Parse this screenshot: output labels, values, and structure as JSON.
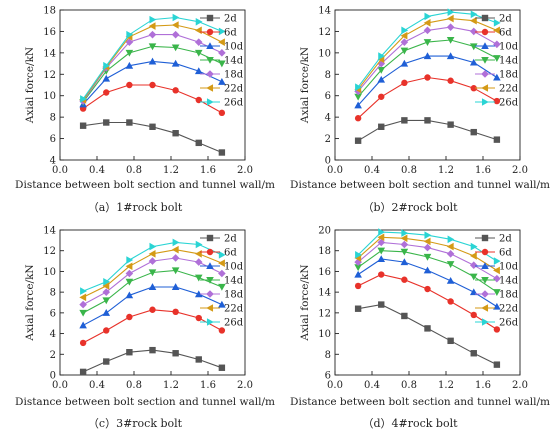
{
  "legend_labels": [
    "2d",
    "6d",
    "10d",
    "14d",
    "18d",
    "22d",
    "26d"
  ],
  "series_colors": [
    "#555555",
    "#e8322a",
    "#1f5fd6",
    "#3ab54a",
    "#b070d8",
    "#d49a16",
    "#2ad4d4"
  ],
  "series_markers": [
    "square",
    "circle",
    "triangle-up",
    "triangle-down",
    "diamond",
    "triangle-left",
    "triangle-right"
  ],
  "chart_data": [
    {
      "type": "line",
      "caption": "（a）1#rock bolt",
      "xlabel": "Distance between bolt section and tunnel wall/m",
      "ylabel": "Axial force/kN",
      "xlim": [
        0.0,
        2.0
      ],
      "ylim": [
        4,
        18
      ],
      "xticks": [
        0.0,
        0.4,
        0.8,
        1.2,
        1.6,
        2.0
      ],
      "xtick_labels": [
        "0.0",
        "0.4",
        "0.8",
        "1.2",
        "1.6",
        "2.0"
      ],
      "yticks": [
        4,
        6,
        8,
        10,
        12,
        14,
        16,
        18
      ],
      "ytick_labels": [
        "4",
        "6",
        "8",
        "10",
        "12",
        "14",
        "16",
        "18"
      ],
      "x": [
        0.25,
        0.5,
        0.75,
        1.0,
        1.25,
        1.5,
        1.75
      ],
      "series": [
        {
          "name": "2d",
          "values": [
            7.2,
            7.5,
            7.5,
            7.1,
            6.5,
            5.6,
            4.7
          ]
        },
        {
          "name": "6d",
          "values": [
            8.8,
            10.3,
            11.0,
            11.0,
            10.5,
            9.6,
            8.4
          ]
        },
        {
          "name": "10d",
          "values": [
            9.2,
            11.6,
            12.8,
            13.2,
            13.0,
            12.3,
            11.3
          ]
        },
        {
          "name": "14d",
          "values": [
            9.4,
            12.3,
            14.0,
            14.6,
            14.5,
            14.0,
            13.0
          ]
        },
        {
          "name": "18d",
          "values": [
            9.5,
            12.6,
            15.0,
            15.7,
            15.7,
            15.0,
            14.0
          ]
        },
        {
          "name": "22d",
          "values": [
            9.6,
            12.7,
            15.5,
            16.5,
            16.6,
            16.1,
            15.0
          ]
        },
        {
          "name": "26d",
          "values": [
            9.7,
            12.8,
            15.7,
            17.1,
            17.3,
            16.9,
            16.0
          ]
        }
      ]
    },
    {
      "type": "line",
      "caption": "（b）2#rock bolt",
      "xlabel": "Distance between bolt section and tunnel wall/m",
      "ylabel": "Axial force/kN",
      "xlim": [
        0.0,
        2.0
      ],
      "ylim": [
        0,
        14
      ],
      "xticks": [
        0.0,
        0.4,
        0.8,
        1.2,
        1.6,
        2.0
      ],
      "xtick_labels": [
        "0.0",
        "0.4",
        "0.8",
        "1.2",
        "1.6",
        "2.0"
      ],
      "yticks": [
        0,
        2,
        4,
        6,
        8,
        10,
        12,
        14
      ],
      "ytick_labels": [
        "0",
        "2",
        "4",
        "6",
        "8",
        "10",
        "12",
        "14"
      ],
      "x": [
        0.25,
        0.5,
        0.75,
        1.0,
        1.25,
        1.5,
        1.75
      ],
      "series": [
        {
          "name": "2d",
          "values": [
            1.8,
            3.1,
            3.7,
            3.7,
            3.3,
            2.6,
            1.9
          ]
        },
        {
          "name": "6d",
          "values": [
            3.9,
            5.9,
            7.2,
            7.7,
            7.4,
            6.7,
            5.5
          ]
        },
        {
          "name": "10d",
          "values": [
            5.1,
            7.5,
            9.0,
            9.7,
            9.7,
            9.1,
            7.7
          ]
        },
        {
          "name": "14d",
          "values": [
            5.9,
            8.4,
            10.2,
            11.0,
            11.2,
            10.6,
            9.5
          ]
        },
        {
          "name": "18d",
          "values": [
            6.4,
            9.0,
            11.0,
            12.1,
            12.4,
            12.0,
            10.8
          ]
        },
        {
          "name": "22d",
          "values": [
            6.6,
            9.4,
            11.6,
            12.8,
            13.2,
            13.0,
            12.1
          ]
        },
        {
          "name": "26d",
          "values": [
            6.8,
            9.7,
            12.1,
            13.4,
            13.8,
            13.6,
            12.8
          ]
        }
      ]
    },
    {
      "type": "line",
      "caption": "（c）3#rock bolt",
      "xlabel": "Distance between bolt section and tunnel wall/m",
      "ylabel": "Axial force/kN",
      "xlim": [
        0.0,
        2.0
      ],
      "ylim": [
        0,
        14
      ],
      "xticks": [
        0.0,
        0.4,
        0.8,
        1.2,
        1.6,
        2.0
      ],
      "xtick_labels": [
        "0.0",
        "0.4",
        "0.8",
        "1.2",
        "1.6",
        "2.0"
      ],
      "yticks": [
        0,
        2,
        4,
        6,
        8,
        10,
        12,
        14
      ],
      "ytick_labels": [
        "0",
        "2",
        "4",
        "6",
        "8",
        "10",
        "12",
        "14"
      ],
      "x": [
        0.25,
        0.5,
        0.75,
        1.0,
        1.25,
        1.5,
        1.75
      ],
      "series": [
        {
          "name": "2d",
          "values": [
            0.3,
            1.3,
            2.2,
            2.4,
            2.1,
            1.5,
            0.7
          ]
        },
        {
          "name": "6d",
          "values": [
            3.1,
            4.3,
            5.6,
            6.3,
            6.1,
            5.5,
            4.3
          ]
        },
        {
          "name": "10d",
          "values": [
            4.8,
            6.0,
            7.7,
            8.5,
            8.5,
            7.8,
            6.8
          ]
        },
        {
          "name": "14d",
          "values": [
            6.0,
            7.2,
            9.0,
            9.9,
            10.1,
            9.4,
            8.5
          ]
        },
        {
          "name": "18d",
          "values": [
            6.8,
            8.0,
            9.8,
            11.0,
            11.3,
            10.9,
            9.8
          ]
        },
        {
          "name": "22d",
          "values": [
            7.5,
            8.6,
            10.5,
            11.7,
            12.1,
            11.7,
            10.8
          ]
        },
        {
          "name": "26d",
          "values": [
            8.1,
            9.0,
            11.1,
            12.4,
            12.8,
            12.6,
            11.6
          ]
        }
      ]
    },
    {
      "type": "line",
      "caption": "（d）4#rock bolt",
      "xlabel": "Distance between bolt section and tunnel wall/m",
      "ylabel": "Axial force/kN",
      "xlim": [
        0.0,
        2.0
      ],
      "ylim": [
        6,
        20
      ],
      "xticks": [
        0.0,
        0.4,
        0.8,
        1.2,
        1.6,
        2.0
      ],
      "xtick_labels": [
        "0.0",
        "0.4",
        "0.8",
        "1.2",
        "1.6",
        "2.0"
      ],
      "yticks": [
        6,
        8,
        10,
        12,
        14,
        16,
        18,
        20
      ],
      "ytick_labels": [
        "6",
        "8",
        "10",
        "12",
        "14",
        "16",
        "18",
        "20"
      ],
      "x": [
        0.25,
        0.5,
        0.75,
        1.0,
        1.25,
        1.5,
        1.75
      ],
      "series": [
        {
          "name": "2d",
          "values": [
            12.4,
            12.8,
            11.7,
            10.5,
            9.3,
            8.1,
            7.0
          ]
        },
        {
          "name": "6d",
          "values": [
            14.6,
            15.7,
            15.2,
            14.3,
            13.1,
            11.8,
            10.4
          ]
        },
        {
          "name": "10d",
          "values": [
            15.7,
            17.2,
            16.9,
            16.1,
            15.1,
            14.0,
            12.6
          ]
        },
        {
          "name": "14d",
          "values": [
            16.4,
            18.0,
            17.9,
            17.4,
            16.7,
            15.5,
            14.0
          ]
        },
        {
          "name": "18d",
          "values": [
            16.9,
            18.8,
            18.6,
            18.3,
            17.7,
            16.6,
            15.3
          ]
        },
        {
          "name": "22d",
          "values": [
            17.3,
            19.3,
            19.2,
            18.9,
            18.4,
            17.5,
            16.1
          ]
        },
        {
          "name": "26d",
          "values": [
            17.6,
            19.8,
            19.7,
            19.5,
            19.1,
            18.4,
            17.0
          ]
        }
      ]
    }
  ]
}
